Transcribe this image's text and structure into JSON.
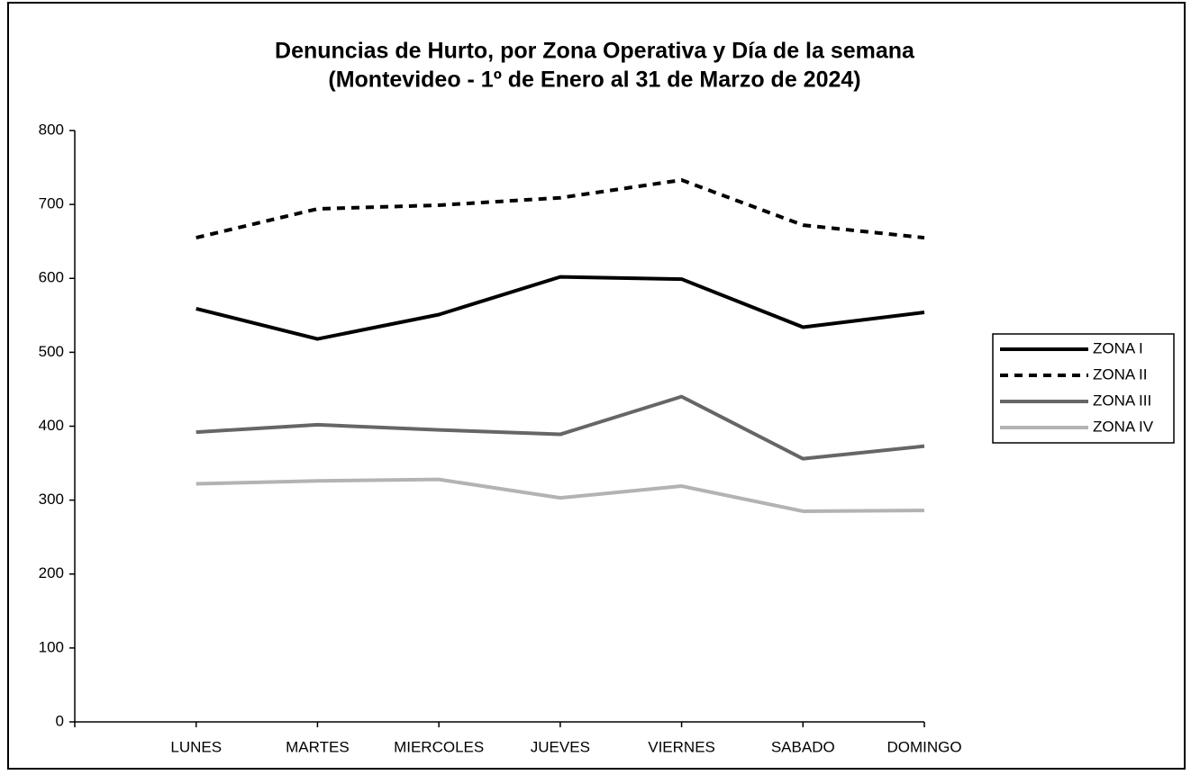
{
  "chart_data": {
    "type": "line",
    "title": "Denuncias de Hurto, por Zona Operativa y Día de la semana",
    "subtitle": "(Montevideo - 1º de Enero al 31 de Marzo de 2024)",
    "categories": [
      "LUNES",
      "MARTES",
      "MIERCOLES",
      "JUEVES",
      "VIERNES",
      "SABADO",
      "DOMINGO"
    ],
    "series": [
      {
        "name": "ZONA I",
        "color": "#000000",
        "line_style": "solid",
        "values": [
          559,
          518,
          551,
          602,
          599,
          534,
          554
        ]
      },
      {
        "name": "ZONA II",
        "color": "#000000",
        "line_style": "dashed",
        "values": [
          655,
          694,
          699,
          709,
          733,
          672,
          655
        ]
      },
      {
        "name": "ZONA III",
        "color": "#666666",
        "line_style": "solid",
        "values": [
          392,
          402,
          395,
          389,
          440,
          356,
          373
        ]
      },
      {
        "name": "ZONA IV",
        "color": "#b3b3b3",
        "line_style": "solid",
        "values": [
          322,
          326,
          328,
          303,
          319,
          285,
          286
        ]
      }
    ],
    "ylim": [
      0,
      800
    ],
    "yticks": [
      0,
      100,
      200,
      300,
      400,
      500,
      600,
      700,
      800
    ],
    "legend": "right"
  }
}
